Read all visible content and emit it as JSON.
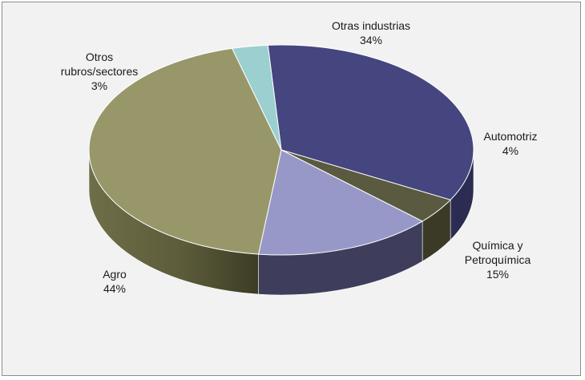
{
  "chart_data": {
    "type": "pie",
    "title": "",
    "three_d": true,
    "legend": "none",
    "categories": [
      "Otras industrias",
      "Automotriz",
      "Química y Petroquímica",
      "Agro",
      "Otros rubros/sectores"
    ],
    "values": [
      34,
      4,
      15,
      44,
      3
    ],
    "colors": [
      "#45457f",
      "#5a5a40",
      "#9797c8",
      "#97976a",
      "#9ccfcf"
    ],
    "side_colors": [
      "#2c2c52",
      "#3a3a27",
      "#3e3e5c",
      "#5f5f3e",
      "#6a9a9a"
    ],
    "labels": [
      {
        "name_lines": [
          "Otras industrias"
        ],
        "pct": "34%"
      },
      {
        "name_lines": [
          "Automotriz"
        ],
        "pct": "4%"
      },
      {
        "name_lines": [
          "Química y",
          "Petroquímica"
        ],
        "pct": "15%"
      },
      {
        "name_lines": [
          "Agro"
        ],
        "pct": "44%"
      },
      {
        "name_lines": [
          "Otros",
          "rubros/sectores"
        ],
        "pct": "3%"
      }
    ]
  }
}
